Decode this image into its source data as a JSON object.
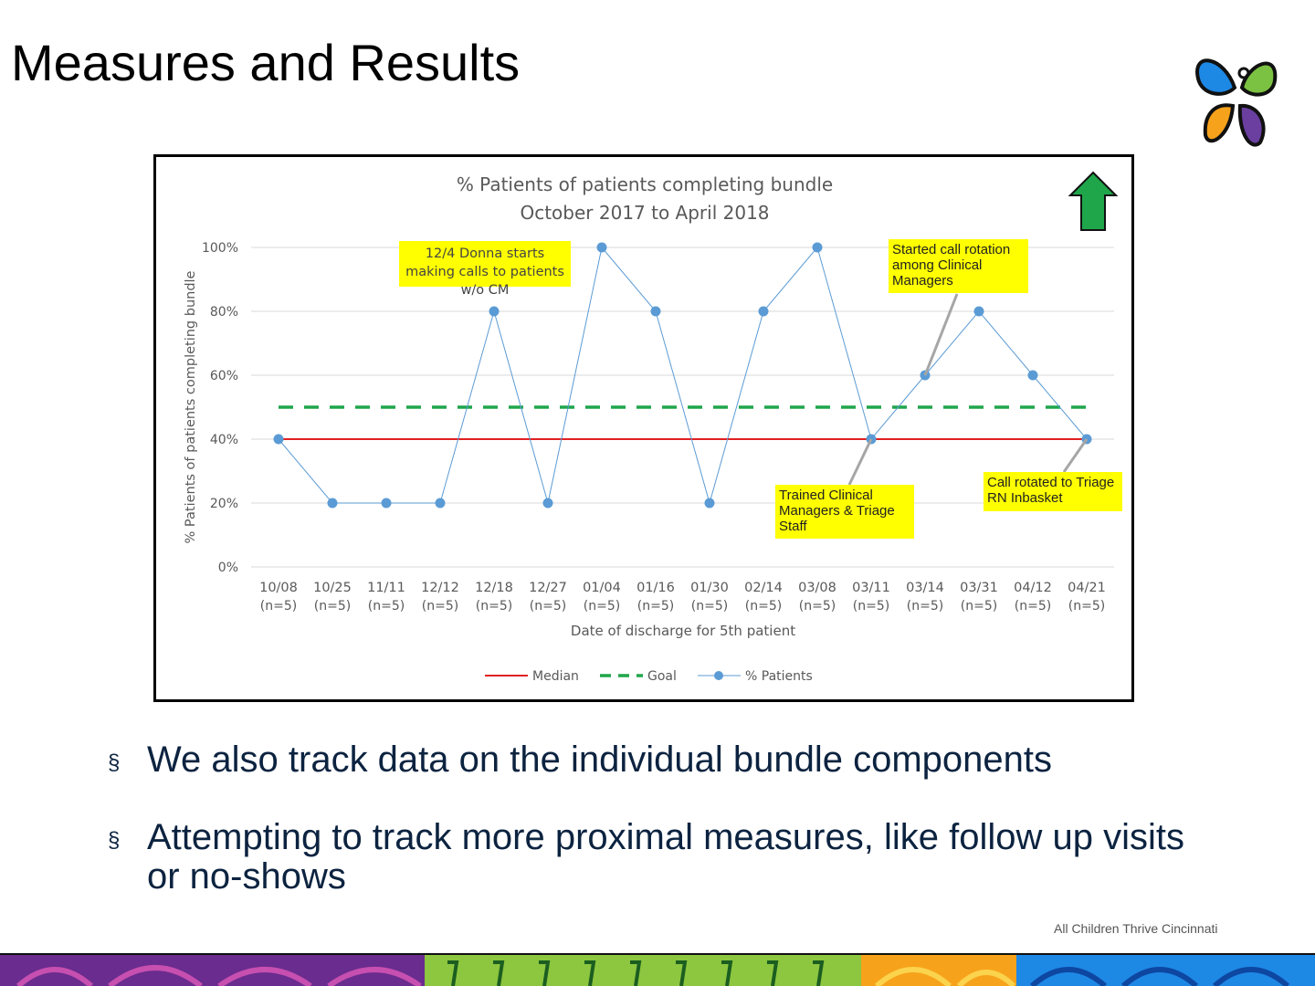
{
  "slide": {
    "title": "Measures and Results",
    "bullets": [
      "We also track data on the individual bundle components",
      "Attempting to track more proximal measures, like follow up visits or no-shows"
    ],
    "bullet_marker": "§",
    "footer": "All Children Thrive Cincinnati"
  },
  "colors": {
    "median": "#e02020",
    "goal": "#1fa64a",
    "patients": "#5b9bd5",
    "annotation_bg": "#ffff00",
    "up_arrow": "#1fa64a"
  },
  "icons": {
    "logo": "butterfly-logo-icon",
    "arrow": "up-arrow-icon"
  },
  "chart_data": {
    "type": "line",
    "title": "% Patients of patients completing bundle",
    "subtitle": "October 2017 to April 2018",
    "xlabel": "Date of  discharge for 5th patient",
    "ylabel": "% Patients  of patients completing bundle",
    "ylim": [
      0,
      100
    ],
    "yticks": [
      "0%",
      "20%",
      "40%",
      "60%",
      "80%",
      "100%"
    ],
    "categories": [
      "10/08",
      "10/25",
      "11/11",
      "12/12",
      "12/18",
      "12/27",
      "01/04",
      "01/16",
      "01/30",
      "02/14",
      "03/08",
      "03/11",
      "03/14",
      "03/31",
      "04/12",
      "04/21"
    ],
    "category_sublabels": [
      "(n=5)",
      "(n=5)",
      "(n=5)",
      "(n=5)",
      "(n=5)",
      "(n=5)",
      "(n=5)",
      "(n=5)",
      "(n=5)",
      "(n=5)",
      "(n=5)",
      "(n=5)",
      "(n=5)",
      "(n=5)",
      "(n=5)",
      "(n=5)"
    ],
    "series": [
      {
        "name": "Median",
        "style": "solid",
        "values": [
          40,
          40,
          40,
          40,
          40,
          40,
          40,
          40,
          40,
          40,
          40,
          40,
          40,
          40,
          40,
          40
        ]
      },
      {
        "name": "Goal",
        "style": "dashed",
        "values": [
          50,
          50,
          50,
          50,
          50,
          50,
          50,
          50,
          50,
          50,
          50,
          50,
          50,
          50,
          50,
          50
        ]
      },
      {
        "name": "% Patients",
        "style": "line-markers",
        "values": [
          40,
          20,
          20,
          20,
          80,
          20,
          100,
          80,
          20,
          80,
          100,
          40,
          60,
          80,
          60,
          40
        ]
      }
    ],
    "legend": [
      "Median",
      "Goal",
      "% Patients"
    ],
    "legend_position": "bottom",
    "grid": true,
    "annotations": [
      {
        "text": "12/4 Donna starts making calls to patients w/o CM"
      },
      {
        "text": "Started call rotation among Clinical Managers",
        "target_index": 12
      },
      {
        "text": "Trained Clinical Managers & Triage Staff",
        "target_index": 11
      },
      {
        "text": "Call rotated to Triage RN Inbasket",
        "target_index": 15
      }
    ]
  }
}
